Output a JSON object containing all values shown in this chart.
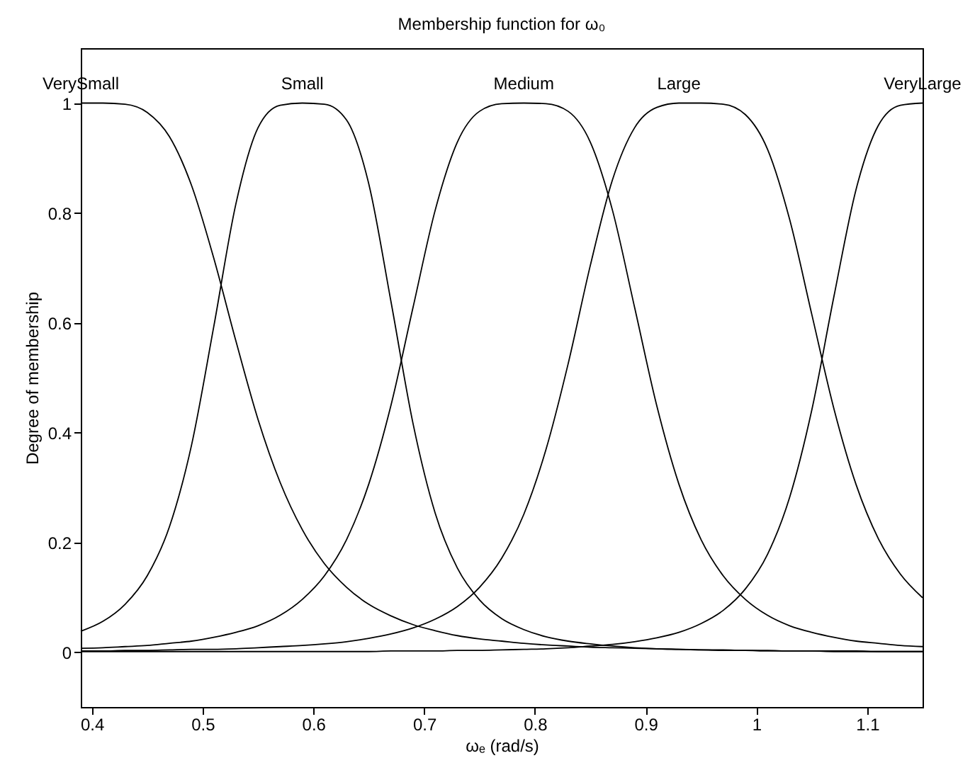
{
  "chart_data": {
    "type": "line",
    "title": "Membership function for ω₀",
    "xlabel": "ωₑ (rad/s)",
    "ylabel": "Degree of membership",
    "x": [
      0.39,
      0.41,
      0.43,
      0.45,
      0.47,
      0.49,
      0.51,
      0.53,
      0.55,
      0.57,
      0.59,
      0.61,
      0.63,
      0.65,
      0.67,
      0.69,
      0.71,
      0.73,
      0.75,
      0.77,
      0.79,
      0.81,
      0.83,
      0.85,
      0.87,
      0.89,
      0.91,
      0.93,
      0.95,
      0.97,
      0.99,
      1.01,
      1.03,
      1.05,
      1.07,
      1.09,
      1.11,
      1.13,
      1.15
    ],
    "series": [
      {
        "name": "VerySmall",
        "color": "#000000",
        "values": [
          1.0,
          1.0,
          0.998,
          0.983,
          0.939,
          0.85,
          0.718,
          0.567,
          0.424,
          0.309,
          0.223,
          0.161,
          0.118,
          0.087,
          0.066,
          0.05,
          0.039,
          0.03,
          0.024,
          0.02,
          0.016,
          0.013,
          0.011,
          0.009,
          0.008,
          0.007,
          0.006,
          0.005,
          0.004,
          0.004,
          0.003,
          0.003,
          0.002,
          0.002,
          0.002,
          0.002,
          0.001,
          0.001,
          0.001
        ]
      },
      {
        "name": "Small",
        "color": "#000000",
        "values": [
          0.038,
          0.056,
          0.087,
          0.139,
          0.228,
          0.377,
          0.592,
          0.816,
          0.955,
          0.996,
          1.0,
          0.998,
          0.969,
          0.853,
          0.639,
          0.416,
          0.253,
          0.153,
          0.095,
          0.061,
          0.041,
          0.028,
          0.02,
          0.015,
          0.011,
          0.008,
          0.006,
          0.005,
          0.004,
          0.003,
          0.003,
          0.002,
          0.002,
          0.002,
          0.001,
          0.001,
          0.001,
          0.001,
          0.001
        ]
      },
      {
        "name": "Medium",
        "color": "#000000",
        "values": [
          0.007,
          0.008,
          0.01,
          0.012,
          0.016,
          0.02,
          0.027,
          0.036,
          0.048,
          0.067,
          0.096,
          0.139,
          0.205,
          0.306,
          0.449,
          0.628,
          0.805,
          0.929,
          0.985,
          0.999,
          1.0,
          0.999,
          0.985,
          0.929,
          0.805,
          0.628,
          0.449,
          0.306,
          0.205,
          0.139,
          0.096,
          0.067,
          0.048,
          0.036,
          0.027,
          0.02,
          0.016,
          0.012,
          0.01
        ]
      },
      {
        "name": "Large",
        "color": "#000000",
        "values": [
          0.002,
          0.002,
          0.003,
          0.003,
          0.004,
          0.005,
          0.005,
          0.006,
          0.008,
          0.01,
          0.012,
          0.015,
          0.019,
          0.025,
          0.033,
          0.044,
          0.06,
          0.083,
          0.118,
          0.171,
          0.251,
          0.369,
          0.525,
          0.704,
          0.86,
          0.955,
          0.992,
          1.0,
          1.0,
          0.998,
          0.979,
          0.916,
          0.788,
          0.615,
          0.443,
          0.305,
          0.207,
          0.142,
          0.099
        ]
      },
      {
        "name": "VeryLarge",
        "color": "#000000",
        "values": [
          0.001,
          0.001,
          0.001,
          0.001,
          0.001,
          0.001,
          0.001,
          0.001,
          0.001,
          0.001,
          0.001,
          0.001,
          0.001,
          0.001,
          0.002,
          0.002,
          0.002,
          0.003,
          0.003,
          0.004,
          0.005,
          0.006,
          0.008,
          0.011,
          0.014,
          0.019,
          0.026,
          0.036,
          0.052,
          0.076,
          0.115,
          0.178,
          0.282,
          0.441,
          0.648,
          0.843,
          0.959,
          0.996,
          1.0
        ]
      }
    ],
    "xlim": [
      0.39,
      1.15
    ],
    "xticks": [
      0.4,
      0.5,
      0.6,
      0.7,
      0.8,
      0.9,
      1,
      1.1
    ],
    "ylim": [
      -0.1,
      1.1
    ],
    "yticks": [
      0,
      0.2,
      0.4,
      0.6,
      0.8,
      1
    ],
    "grid": false,
    "legend": false
  }
}
